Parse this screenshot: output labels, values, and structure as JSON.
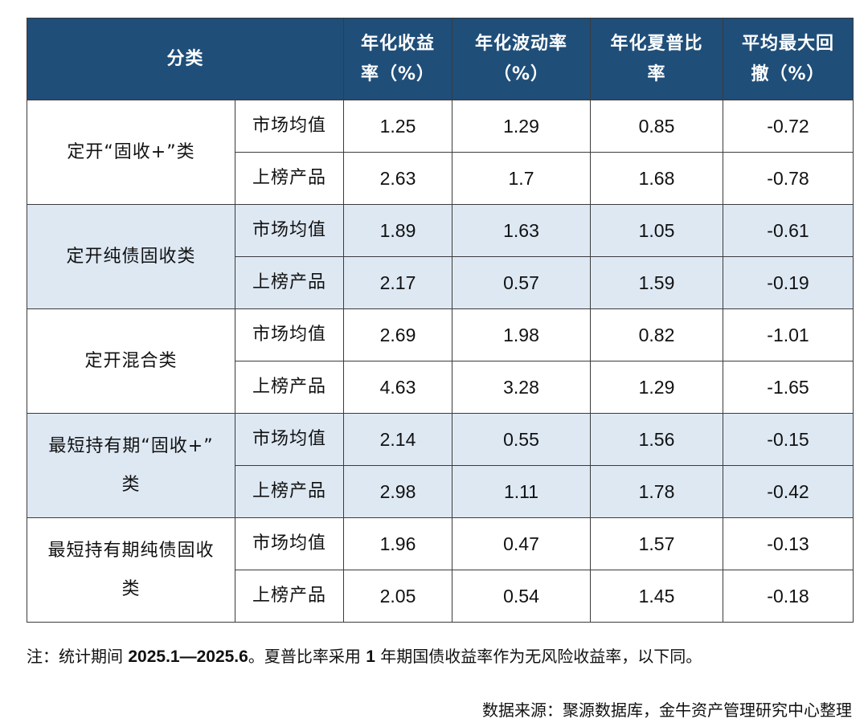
{
  "table": {
    "headers": {
      "category": "分类",
      "col1_line1": "年化收益",
      "col1_line2": "率（%）",
      "col2_line1": "年化波动率",
      "col2_line2": "（%）",
      "col3_line1": "年化夏普比",
      "col3_line2": "率",
      "col4_line1": "平均最大回",
      "col4_line2": "撤（%）"
    },
    "groups": [
      {
        "category_line1": "定开“固收+”类",
        "category_line2": "",
        "rows": [
          {
            "sub": "市场均值",
            "v1": "1.25",
            "v2": "1.29",
            "v3": "0.85",
            "v4": "-0.72"
          },
          {
            "sub": "上榜产品",
            "v1": "2.63",
            "v2": "1.7",
            "v3": "1.68",
            "v4": "-0.78"
          }
        ]
      },
      {
        "category_line1": "定开纯债固收类",
        "category_line2": "",
        "rows": [
          {
            "sub": "市场均值",
            "v1": "1.89",
            "v2": "1.63",
            "v3": "1.05",
            "v4": "-0.61"
          },
          {
            "sub": "上榜产品",
            "v1": "2.17",
            "v2": "0.57",
            "v3": "1.59",
            "v4": "-0.19"
          }
        ]
      },
      {
        "category_line1": "定开混合类",
        "category_line2": "",
        "rows": [
          {
            "sub": "市场均值",
            "v1": "2.69",
            "v2": "1.98",
            "v3": "0.82",
            "v4": "-1.01"
          },
          {
            "sub": "上榜产品",
            "v1": "4.63",
            "v2": "3.28",
            "v3": "1.29",
            "v4": "-1.65"
          }
        ]
      },
      {
        "category_line1": "最短持有期“固收+”",
        "category_line2": "类",
        "rows": [
          {
            "sub": "市场均值",
            "v1": "2.14",
            "v2": "0.55",
            "v3": "1.56",
            "v4": "-0.15"
          },
          {
            "sub": "上榜产品",
            "v1": "2.98",
            "v2": "1.11",
            "v3": "1.78",
            "v4": "-0.42"
          }
        ]
      },
      {
        "category_line1": "最短持有期纯债固收",
        "category_line2": "类",
        "rows": [
          {
            "sub": "市场均值",
            "v1": "1.96",
            "v2": "0.47",
            "v3": "1.57",
            "v4": "-0.13"
          },
          {
            "sub": "上榜产品",
            "v1": "2.05",
            "v2": "0.54",
            "v3": "1.45",
            "v4": "-0.18"
          }
        ]
      }
    ]
  },
  "footnote": {
    "prefix": "注：统计期间 ",
    "period": "2025.1—2025.6",
    "middle": "。夏普比率采用 ",
    "term": "1",
    "suffix": " 年期国债收益率作为无风险收益率，以下同。"
  },
  "source": "数据来源：聚源数据库，金牛资产管理研究中心整理",
  "colors": {
    "header_bg": "#1f4e79",
    "header_text": "#ffffff",
    "shaded_row_bg": "#dde8f3",
    "border": "#3b3b3b"
  }
}
